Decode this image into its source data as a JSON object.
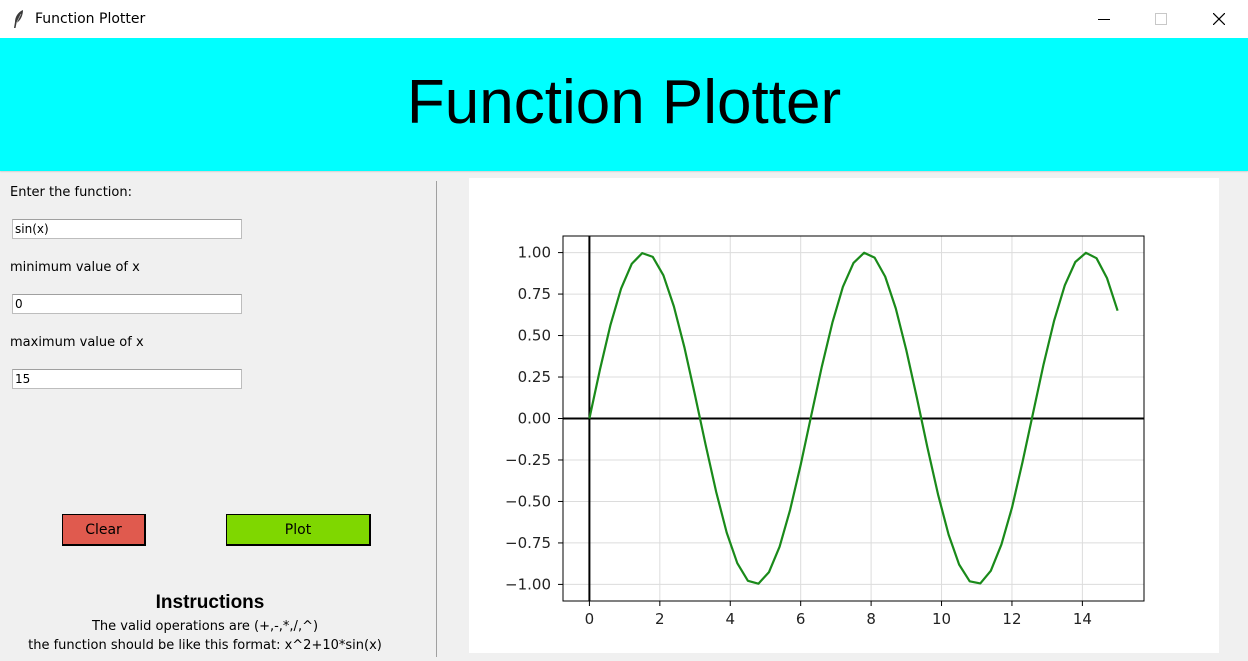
{
  "window": {
    "title": "Function Plotter"
  },
  "banner": {
    "title": "Function Plotter",
    "background": "#00ffff"
  },
  "form": {
    "function_label": "Enter the function:",
    "function_value": "sin(x)",
    "min_label": "minimum value of x",
    "min_value": "0",
    "max_label": "maximum value of x",
    "max_value": "15"
  },
  "buttons": {
    "clear_label": "Clear",
    "clear_color": "#e05a4e",
    "plot_label": "Plot",
    "plot_color": "#7fd700"
  },
  "instructions": {
    "title": "Instructions",
    "line1": "The valid operations are (+,-,*,/,^)",
    "line2": "the function should be like this format: x^2+10*sin(x)"
  },
  "chart_data": {
    "type": "line",
    "function": "sin(x)",
    "xlim": [
      -0.75,
      15.75
    ],
    "ylim": [
      -1.1,
      1.1
    ],
    "x_ticks": [
      0,
      2,
      4,
      6,
      8,
      10,
      12,
      14
    ],
    "x_tick_labels": [
      "0",
      "2",
      "4",
      "6",
      "8",
      "10",
      "12",
      "14"
    ],
    "y_ticks": [
      1.0,
      0.75,
      0.5,
      0.25,
      0.0,
      -0.25,
      -0.5,
      -0.75,
      -1.0
    ],
    "y_tick_labels": [
      "1.00",
      "0.75",
      "0.50",
      "0.25",
      "0.00",
      "−0.25",
      "−0.50",
      "−0.75",
      "−1.00"
    ],
    "grid": true,
    "axis_lines_at_zero": true,
    "line_color": "#1a8a1a",
    "series": [
      {
        "x": [
          0,
          0.3,
          0.6,
          0.9,
          1.2,
          1.5,
          1.8,
          2.1,
          2.4,
          2.7,
          3.0,
          3.3,
          3.6,
          3.9,
          4.2,
          4.5,
          4.8,
          5.1,
          5.4,
          5.7,
          6.0,
          6.3,
          6.6,
          6.9,
          7.2,
          7.5,
          7.8,
          8.1,
          8.4,
          8.7,
          9.0,
          9.3,
          9.6,
          9.9,
          10.2,
          10.5,
          10.8,
          11.1,
          11.4,
          11.7,
          12.0,
          12.3,
          12.6,
          12.9,
          13.2,
          13.5,
          13.8,
          14.1,
          14.4,
          14.7,
          15.0
        ],
        "y": [
          0.0,
          0.296,
          0.565,
          0.783,
          0.932,
          0.997,
          0.974,
          0.863,
          0.675,
          0.427,
          0.141,
          -0.158,
          -0.443,
          -0.688,
          -0.872,
          -0.978,
          -0.996,
          -0.926,
          -0.773,
          -0.551,
          -0.279,
          0.017,
          0.312,
          0.578,
          0.794,
          0.938,
          0.999,
          0.97,
          0.855,
          0.663,
          0.412,
          0.124,
          -0.174,
          -0.457,
          -0.7,
          -0.88,
          -0.981,
          -0.994,
          -0.918,
          -0.76,
          -0.537,
          -0.263,
          0.034,
          0.327,
          0.591,
          0.803,
          0.943,
          0.999,
          0.966,
          0.846,
          0.65
        ]
      }
    ]
  }
}
